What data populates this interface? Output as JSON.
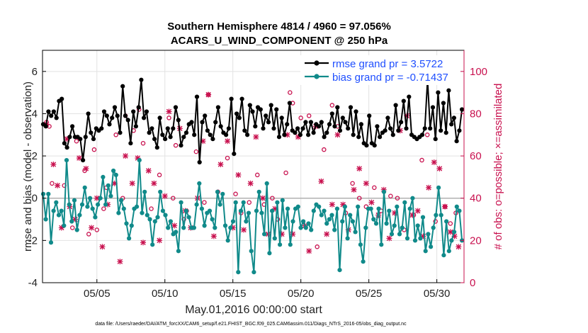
{
  "chart_data": {
    "type": "line",
    "title": "Southern Hemisphere 4814 / 4960 = 97.056%",
    "subtitle": "ACARS_U_WIND_COMPONENT @ 250 hPa",
    "xlabel": "May.01,2016 00:00:00 start",
    "ylabel": "rmse and bias (model - observation)",
    "y2label": "# of obs: o=possible; ×=assimilated",
    "footnote": "data file: /Users/raeder/DAI/ATM_forcXX/CAM6_setup/f.e21.FHIST_BGC.f09_025.CAM6assim.011/Diags_NTrS_2016-05/obs_diag_output.nc",
    "xlim": [
      1,
      32
    ],
    "ylim": [
      -4,
      7
    ],
    "y2lim": [
      0,
      110
    ],
    "xticks": [
      5,
      10,
      15,
      20,
      25,
      30
    ],
    "xtick_labels": [
      "05/05",
      "05/10",
      "05/15",
      "05/20",
      "05/25",
      "05/30"
    ],
    "yticks": [
      -4,
      -2,
      0,
      2,
      4,
      6
    ],
    "ytick_labels": [
      "-4",
      "-2",
      "0",
      "2",
      "4",
      "6"
    ],
    "y2ticks": [
      0,
      20,
      40,
      60,
      80,
      100
    ],
    "y2tick_labels": [
      "0",
      "20",
      "40",
      "60",
      "80",
      "100"
    ],
    "grid": true,
    "legend_position": "top-right",
    "series": [
      {
        "name": "rmse grand pr = 3.5722",
        "color": "#000000",
        "axis": "left",
        "marker": "circle",
        "y": [
          3.5,
          3.4,
          4.1,
          3.9,
          4.1,
          3.8,
          4.6,
          4.7,
          2.6,
          2.4,
          2.9,
          3.4,
          2.9,
          2.9,
          2.8,
          1.8,
          2.9,
          4.0,
          3.1,
          2.8,
          3.3,
          3.2,
          3.3,
          4.1,
          3.9,
          3.5,
          3.8,
          4.3,
          3.9,
          3.1,
          5.3,
          3.9,
          3.7,
          2.6,
          4.1,
          3.4,
          4.3,
          5.6,
          3.8,
          4.1,
          3.1,
          3.3,
          2.8,
          2.4,
          3.8,
          3.0,
          2.8,
          3.3,
          2.9,
          3.3,
          4.3,
          3.7,
          2.5,
          2.9,
          3.1,
          3.5,
          3.6,
          3.0,
          4.8,
          1.7,
          3.6,
          3.9,
          3.2,
          3.0,
          2.8,
          3.6,
          4.3,
          3.4,
          3.1,
          3.0,
          3.3,
          4.7,
          2.1,
          4.0,
          3.8,
          4.7,
          3.2,
          3.0,
          4.4,
          4.1,
          3.4,
          4.3,
          4.2,
          3.3,
          3.9,
          3.6,
          4.4,
          3.3,
          4.2,
          2.9,
          3.8,
          3.0,
          3.5,
          4.5,
          3.2,
          3.1,
          3.3,
          3.0,
          3.3,
          3.6,
          3.0,
          3.6,
          3.1,
          3.5,
          3.4,
          3.6,
          2.9,
          3.1,
          3.5,
          4.0,
          3.4,
          4.3,
          3.2,
          3.8,
          3.6,
          3.3,
          4.3,
          3.0,
          4.1,
          2.9,
          3.5,
          2.6,
          2.5,
          3.9,
          2.6,
          2.5,
          3.4,
          2.9,
          3.1,
          3.2,
          3.8,
          3.3,
          3.0,
          4.4,
          3.2,
          3.6,
          4.6,
          3.3,
          4.8,
          3.0,
          2.9,
          2.8,
          2.9,
          3.0,
          3.3,
          5.6,
          3.3,
          4.3,
          2.8,
          5.0,
          3.2,
          4.5,
          3.1,
          5.1,
          3.5,
          3.8,
          2.7,
          3.2,
          4.2
        ],
        "x_start": 1.05,
        "x_end": 31.85
      },
      {
        "name": "bias grand pr = -0.71437",
        "color": "#108a8a",
        "axis": "left",
        "marker": "circle",
        "y": [
          0.2,
          -1.0,
          0.2,
          -2.1,
          -0.6,
          -0.2,
          -0.8,
          -0.6,
          -1.3,
          1.8,
          -0.3,
          -1.1,
          -0.1,
          -1.5,
          -0.8,
          -0.3,
          0.5,
          -0.4,
          0.0,
          -0.5,
          -0.9,
          -0.3,
          0.0,
          1.0,
          -0.3,
          0.6,
          0.1,
          1.3,
          1.1,
          -0.7,
          -0.1,
          -0.5,
          -1.2,
          -1.9,
          -1.3,
          -0.5,
          -0.4,
          1.8,
          -0.7,
          0.3,
          -0.8,
          -1.0,
          -2.2,
          -1.1,
          -0.9,
          0.3,
          -0.6,
          -0.8,
          -1.4,
          -1.1,
          -1.7,
          -1.6,
          -2.5,
          -0.2,
          -1.4,
          -0.6,
          -0.9,
          -1.4,
          -1.4,
          -0.3,
          0.7,
          -0.5,
          -1.3,
          -0.7,
          -0.6,
          -1.0,
          -1.4,
          0.3,
          -0.3,
          0.2,
          -1.3,
          -2.0,
          -1.4,
          -1.1,
          -0.2,
          -3.5,
          -0.6,
          -0.2,
          -1.1,
          -0.7,
          -2.5,
          -3.5,
          -0.6,
          0.3,
          -0.7,
          -1.7,
          0.7,
          -2.6,
          -0.6,
          -1.9,
          -0.2,
          -2.2,
          -0.1,
          -1.4,
          -0.5,
          -2.2,
          -1.1,
          -0.5,
          -0.4,
          -1.4,
          -1.1,
          -1.4,
          -1.2,
          -1.5,
          -0.6,
          -0.3,
          -0.4,
          -0.8,
          -0.6,
          -1.2,
          -1.0,
          -0.8,
          -1.5,
          -0.5,
          -3.4,
          -1.1,
          -0.4,
          -1.9,
          -0.8,
          -1.1,
          -1.6,
          -0.4,
          -2.2,
          -3.0,
          -1.4,
          -0.5,
          -0.5,
          -1.0,
          -1.2,
          -0.5,
          -2.2,
          0.3,
          -1.2,
          -0.6,
          -1.7,
          -1.3,
          -0.4,
          -1.7,
          -1.4,
          -0.2,
          -1.9,
          -0.5,
          0.0,
          -2.0,
          -1.3,
          -1.9,
          -0.9,
          -2.5,
          -1.7,
          -2.3,
          -1.4,
          -0.8,
          0.5,
          -0.8,
          -2.7,
          -1.1,
          -2.5,
          -2.0,
          -1.6,
          -0.4,
          -0.6,
          -2.0
        ],
        "x_start": 1.05,
        "x_end": 31.85
      }
    ],
    "obs_possible": {
      "marker": "o",
      "color": "#c8104e",
      "axis": "right",
      "points": [
        [
          1.3,
          76
        ],
        [
          1.5,
          74
        ],
        [
          1.7,
          47
        ],
        [
          2.6,
          46
        ],
        [
          3.2,
          26
        ],
        [
          3.5,
          67
        ],
        [
          4.1,
          53
        ],
        [
          4.4,
          23
        ],
        [
          4.8,
          63
        ],
        [
          5.0,
          25
        ],
        [
          5.5,
          35
        ],
        [
          5.7,
          45
        ],
        [
          6.4,
          70
        ],
        [
          6.9,
          40
        ],
        [
          7.1,
          79
        ],
        [
          7.7,
          72
        ],
        [
          8.1,
          82
        ],
        [
          8.4,
          66
        ],
        [
          9.0,
          35
        ],
        [
          9.6,
          51
        ],
        [
          10.3,
          78
        ],
        [
          10.6,
          40
        ],
        [
          10.8,
          65
        ],
        [
          11.4,
          30
        ],
        [
          11.6,
          34
        ],
        [
          12.3,
          62
        ],
        [
          12.9,
          38
        ],
        [
          13.2,
          89
        ],
        [
          13.9,
          43
        ],
        [
          14.6,
          59
        ],
        [
          15.2,
          42
        ],
        [
          15.6,
          33
        ],
        [
          16.2,
          38
        ],
        [
          16.8,
          51
        ],
        [
          17.3,
          37
        ],
        [
          17.9,
          40
        ],
        [
          18.3,
          30
        ],
        [
          18.9,
          52
        ],
        [
          19.2,
          90
        ],
        [
          19.4,
          85
        ],
        [
          20.0,
          78
        ],
        [
          20.6,
          79
        ],
        [
          21.2,
          17
        ],
        [
          21.7,
          63
        ],
        [
          22.3,
          84
        ],
        [
          22.7,
          74
        ],
        [
          23.3,
          33
        ],
        [
          23.8,
          47
        ],
        [
          24.3,
          40
        ],
        [
          24.8,
          36
        ],
        [
          25.4,
          45
        ],
        [
          25.9,
          34
        ],
        [
          26.6,
          41
        ],
        [
          27.1,
          40
        ],
        [
          27.6,
          25
        ],
        [
          28.3,
          32
        ],
        [
          28.9,
          58
        ],
        [
          29.3,
          70
        ],
        [
          29.9,
          29
        ],
        [
          30.6,
          36
        ],
        [
          31.0,
          28
        ],
        [
          31.4,
          33
        ]
      ]
    },
    "obs_assimilated": {
      "marker": "x",
      "color": "#c8104e",
      "axis": "right",
      "points": [
        [
          1.3,
          75
        ],
        [
          1.8,
          56
        ],
        [
          2.1,
          46
        ],
        [
          2.4,
          26
        ],
        [
          2.8,
          68
        ],
        [
          3.0,
          36
        ],
        [
          3.4,
          30
        ],
        [
          3.7,
          59
        ],
        [
          4.2,
          54
        ],
        [
          4.6,
          26
        ],
        [
          5.0,
          40
        ],
        [
          5.4,
          17
        ],
        [
          5.8,
          37
        ],
        [
          6.3,
          47
        ],
        [
          6.7,
          10
        ],
        [
          7.1,
          60
        ],
        [
          7.6,
          47
        ],
        [
          8.0,
          59
        ],
        [
          8.4,
          19
        ],
        [
          8.8,
          53
        ],
        [
          9.2,
          47
        ],
        [
          9.6,
          20
        ],
        [
          10.0,
          41
        ],
        [
          10.3,
          81
        ],
        [
          10.7,
          27
        ],
        [
          11.1,
          73
        ],
        [
          11.5,
          34
        ],
        [
          11.9,
          26
        ],
        [
          12.4,
          40
        ],
        [
          12.8,
          67
        ],
        [
          13.2,
          89
        ],
        [
          13.6,
          22
        ],
        [
          14.1,
          56
        ],
        [
          14.6,
          67
        ],
        [
          15.0,
          26
        ],
        [
          15.4,
          51
        ],
        [
          15.8,
          25
        ],
        [
          16.3,
          47
        ],
        [
          16.7,
          69
        ],
        [
          17.2,
          40
        ],
        [
          17.6,
          23
        ],
        [
          18.1,
          35
        ],
        [
          18.6,
          23
        ],
        [
          19.0,
          70
        ],
        [
          19.4,
          23
        ],
        [
          19.8,
          69
        ],
        [
          20.3,
          27
        ],
        [
          20.6,
          15
        ],
        [
          21.1,
          74
        ],
        [
          21.5,
          48
        ],
        [
          21.9,
          23
        ],
        [
          22.3,
          37
        ],
        [
          22.7,
          70
        ],
        [
          23.1,
          37
        ],
        [
          23.5,
          25
        ],
        [
          23.9,
          44
        ],
        [
          24.3,
          54
        ],
        [
          24.8,
          47
        ],
        [
          25.2,
          38
        ],
        [
          25.7,
          32
        ],
        [
          26.1,
          44
        ],
        [
          26.5,
          21
        ],
        [
          26.9,
          33
        ],
        [
          27.3,
          72
        ],
        [
          27.8,
          79
        ],
        [
          28.2,
          32
        ],
        [
          28.6,
          34
        ],
        [
          29.0,
          22
        ],
        [
          29.4,
          45
        ],
        [
          29.8,
          57
        ],
        [
          30.2,
          54
        ],
        [
          30.6,
          36
        ],
        [
          31.0,
          24
        ],
        [
          31.3,
          22
        ],
        [
          31.6,
          17
        ]
      ]
    }
  }
}
